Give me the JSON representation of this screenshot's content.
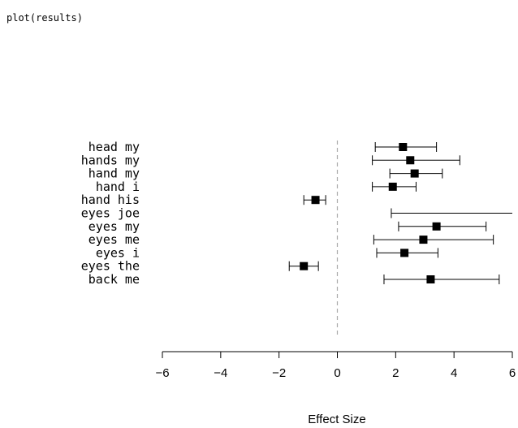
{
  "console": {
    "command": "plot(results)"
  },
  "chart_data": {
    "type": "forest",
    "xlabel": "Effect Size",
    "xlim": [
      -6,
      6
    ],
    "xticks": [
      -6,
      -4,
      -2,
      0,
      2,
      4,
      6
    ],
    "tick_labels": [
      "−6",
      "−4",
      "−2",
      "0",
      "2",
      "4",
      "6"
    ],
    "reference_line": 0,
    "groups": [
      {
        "rows": [
          {
            "label": "head my",
            "estimate": 2.25,
            "lower": 1.3,
            "upper": 3.4
          }
        ]
      },
      {
        "rows": [
          {
            "label": "hands my",
            "estimate": 2.5,
            "lower": 1.2,
            "upper": 4.2
          }
        ]
      },
      {
        "rows": [
          {
            "label": "hand my",
            "estimate": 2.65,
            "lower": 1.8,
            "upper": 3.6
          },
          {
            "label": "hand i",
            "estimate": 1.9,
            "lower": 1.2,
            "upper": 2.7
          },
          {
            "label": "hand his",
            "estimate": -0.75,
            "lower": -1.15,
            "upper": -0.4
          }
        ]
      },
      {
        "rows": [
          {
            "label": "eyes joe",
            "estimate": null,
            "lower": 1.85,
            "upper": 6.0
          },
          {
            "label": "eyes my",
            "estimate": 3.4,
            "lower": 2.1,
            "upper": 5.1
          },
          {
            "label": "eyes me",
            "estimate": 2.95,
            "lower": 1.25,
            "upper": 5.35
          },
          {
            "label": "eyes i",
            "estimate": 2.3,
            "lower": 1.35,
            "upper": 3.45
          },
          {
            "label": "eyes the",
            "estimate": -1.15,
            "lower": -1.65,
            "upper": -0.65
          }
        ]
      },
      {
        "rows": [
          {
            "label": "back me",
            "estimate": 3.2,
            "lower": 1.6,
            "upper": 5.55
          }
        ]
      }
    ]
  }
}
